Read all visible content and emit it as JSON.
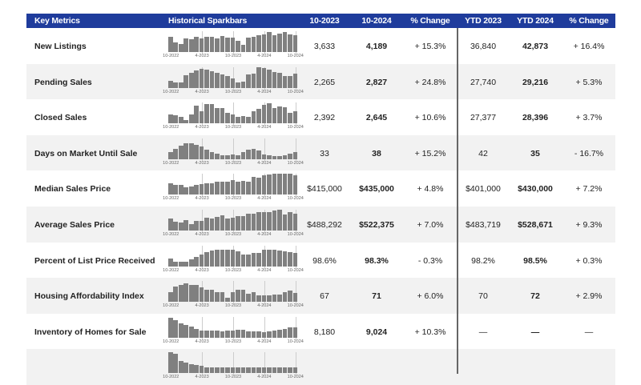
{
  "header": {
    "key_metrics": "Key Metrics",
    "sparkbars": "Historical Sparkbars",
    "col1": "10-2023",
    "col2": "10-2024",
    "col3": "% Change",
    "col4": "YTD 2023",
    "col5": "YTD 2024",
    "col6": "% Change"
  },
  "colors": {
    "header_bg": "#1f3c9c",
    "bar": "#808080",
    "alt_row": "#f2f2f2"
  },
  "tick_labels": [
    "10-2022",
    "4-2023",
    "10-2023",
    "4-2024",
    "10-2024"
  ],
  "rows": [
    {
      "label": "New Listings",
      "m2023": "3,633",
      "m2024": "4,189",
      "mchg": "+ 15.3%",
      "y2023": "36,840",
      "y2024": "42,873",
      "ychg": "+ 16.4%",
      "bars": [
        0.75,
        0.47,
        0.37,
        0.65,
        0.6,
        0.72,
        0.67,
        0.74,
        0.74,
        0.65,
        0.78,
        0.71,
        0.68,
        0.53,
        0.33,
        0.7,
        0.72,
        0.8,
        0.85,
        0.95,
        0.8,
        0.88,
        0.95,
        0.85,
        0.82
      ]
    },
    {
      "label": "Pending Sales",
      "m2023": "2,265",
      "m2024": "2,827",
      "mchg": "+ 24.8%",
      "y2023": "27,740",
      "y2024": "29,216",
      "ychg": "+ 5.3%",
      "bars": [
        0.35,
        0.25,
        0.25,
        0.6,
        0.72,
        0.85,
        0.9,
        0.88,
        0.8,
        0.72,
        0.65,
        0.55,
        0.45,
        0.25,
        0.3,
        0.62,
        0.68,
        0.98,
        0.95,
        0.88,
        0.75,
        0.7,
        0.55,
        0.58,
        0.68
      ]
    },
    {
      "label": "Closed Sales",
      "m2023": "2,392",
      "m2024": "2,645",
      "mchg": "+ 10.6%",
      "y2023": "27,377",
      "y2024": "28,396",
      "ychg": "+ 3.7%",
      "bars": [
        0.45,
        0.38,
        0.33,
        0.18,
        0.42,
        0.85,
        0.6,
        0.95,
        0.95,
        0.72,
        0.73,
        0.52,
        0.45,
        0.3,
        0.35,
        0.32,
        0.6,
        0.7,
        0.9,
        0.98,
        0.75,
        0.8,
        0.78,
        0.5,
        0.6
      ]
    },
    {
      "label": "Days on Market Until Sale",
      "m2023": "33",
      "m2024": "38",
      "mchg": "+ 15.2%",
      "y2023": "42",
      "y2024": "35",
      "ychg": "- 16.7%",
      "bars": [
        0.35,
        0.5,
        0.65,
        0.75,
        0.75,
        0.7,
        0.62,
        0.45,
        0.35,
        0.27,
        0.2,
        0.2,
        0.22,
        0.2,
        0.33,
        0.45,
        0.48,
        0.4,
        0.23,
        0.18,
        0.13,
        0.15,
        0.17,
        0.25,
        0.35
      ]
    },
    {
      "label": "Median Sales Price",
      "m2023": "$415,000",
      "m2024": "$435,000",
      "mchg": "+ 4.8%",
      "y2023": "$401,000",
      "y2024": "$430,000",
      "ychg": "+ 7.2%",
      "bars": [
        0.55,
        0.47,
        0.47,
        0.35,
        0.4,
        0.47,
        0.5,
        0.55,
        0.55,
        0.62,
        0.62,
        0.62,
        0.7,
        0.62,
        0.68,
        0.62,
        0.85,
        0.83,
        0.92,
        0.98,
        1,
        1,
        1,
        1,
        0.93
      ]
    },
    {
      "label": "Average Sales Price",
      "m2023": "$488,292",
      "m2024": "$522,375",
      "mchg": "+ 7.0%",
      "y2023": "$483,719",
      "y2024": "$528,671",
      "ychg": "+ 9.3%",
      "bars": [
        0.57,
        0.42,
        0.37,
        0.5,
        0.3,
        0.47,
        0.47,
        0.62,
        0.57,
        0.67,
        0.72,
        0.57,
        0.6,
        0.68,
        0.68,
        0.8,
        0.8,
        0.9,
        0.9,
        0.9,
        0.95,
        1,
        0.75,
        0.9,
        0.82
      ]
    },
    {
      "label": "Percent of List Price Received",
      "m2023": "98.6%",
      "m2024": "98.3%",
      "mchg": "- 0.3%",
      "y2023": "98.2%",
      "y2024": "98.5%",
      "ychg": "+ 0.3%",
      "bars": [
        0.35,
        0.22,
        0.22,
        0.22,
        0.33,
        0.45,
        0.57,
        0.68,
        0.75,
        0.78,
        0.8,
        0.8,
        0.78,
        0.72,
        0.55,
        0.57,
        0.62,
        0.65,
        0.78,
        0.78,
        0.8,
        0.75,
        0.7,
        0.68,
        0.65
      ]
    },
    {
      "label": "Housing Affordability Index",
      "m2023": "67",
      "m2024": "71",
      "mchg": "+ 6.0%",
      "y2023": "70",
      "y2024": "72",
      "ychg": "+ 2.9%",
      "bars": [
        0.45,
        0.75,
        0.8,
        0.9,
        0.8,
        0.8,
        0.7,
        0.6,
        0.6,
        0.45,
        0.45,
        0.2,
        0.45,
        0.6,
        0.6,
        0.4,
        0.48,
        0.3,
        0.3,
        0.3,
        0.35,
        0.35,
        0.48,
        0.55,
        0.42
      ]
    },
    {
      "label": "Inventory of Homes for Sale",
      "m2023": "8,180",
      "m2024": "9,024",
      "mchg": "+ 10.3%",
      "y2023": "—",
      "y2024": "—",
      "ychg": "—",
      "bars": [
        0.95,
        0.85,
        0.7,
        0.6,
        0.52,
        0.42,
        0.35,
        0.32,
        0.32,
        0.32,
        0.3,
        0.32,
        0.35,
        0.37,
        0.38,
        0.3,
        0.3,
        0.3,
        0.25,
        0.3,
        0.35,
        0.38,
        0.4,
        0.48,
        0.5
      ]
    },
    {
      "label": "",
      "m2023": "",
      "m2024": "",
      "mchg": "",
      "y2023": "",
      "y2024": "",
      "ychg": "",
      "bars": [
        1,
        0.95,
        0.6,
        0.5,
        0.45,
        0.4,
        0.35,
        0.3,
        0.3,
        0.3,
        0.3,
        0.3,
        0.3,
        0.3,
        0.3,
        0.3,
        0.3,
        0.3,
        0.3,
        0.3,
        0.3,
        0.3,
        0.3,
        0.3,
        0.3
      ]
    }
  ]
}
